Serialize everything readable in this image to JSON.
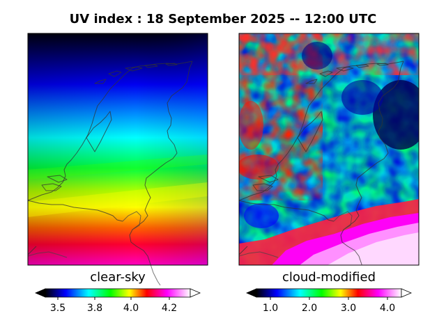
{
  "title": "UV index :  18 September 2025  --  12:00 UTC",
  "panels": [
    {
      "label": "clear-sky",
      "colorbar": {
        "ticks": [
          "3.5",
          "3.8",
          "4.0",
          "4.2"
        ],
        "range": [
          3.3,
          4.35
        ],
        "extend": "both"
      }
    },
    {
      "label": "cloud-modified",
      "colorbar": {
        "ticks": [
          "1.0",
          "2.0",
          "3.0",
          "4.0"
        ],
        "range": [
          0.5,
          4.6
        ],
        "extend": "both"
      }
    }
  ],
  "colormap": [
    "#000000",
    "#0000ff",
    "#00ffff",
    "#00ff00",
    "#ffff00",
    "#ff0000",
    "#ff00ff",
    "#ffffff"
  ]
}
